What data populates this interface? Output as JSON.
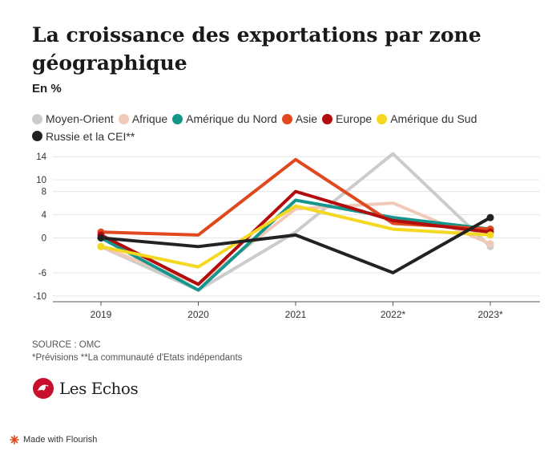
{
  "header": {
    "title": "La croissance des exportations par zone géographique",
    "subtitle": "En %"
  },
  "footer": {
    "source": "SOURCE : OMC",
    "note": "*Prévisions **La communauté d'Etats indépendants"
  },
  "brand": {
    "logo_text": "Les Echos",
    "made_with": "Made with Flourish"
  },
  "chart_data": {
    "type": "line",
    "title": "La croissance des exportations par zone géographique",
    "subtitle": "En %",
    "categories": [
      "2019",
      "2020",
      "2021",
      "2022*",
      "2023*"
    ],
    "y_ticks": [
      14,
      10,
      8,
      4,
      0,
      -6,
      -10
    ],
    "ylim": [
      -11,
      15
    ],
    "grid": true,
    "legend_position": "top",
    "series": [
      {
        "name": "Moyen-Orient",
        "color": "#cccccc",
        "values": [
          -1.5,
          -9,
          1,
          14.5,
          -1.5
        ]
      },
      {
        "name": "Afrique",
        "color": "#f0c9b9",
        "values": [
          -1.5,
          -8,
          5,
          6,
          -1
        ]
      },
      {
        "name": "Amérique du Nord",
        "color": "#14968c",
        "values": [
          0,
          -9,
          6.5,
          3.5,
          1.5
        ]
      },
      {
        "name": "Asie",
        "color": "#e0481d",
        "values": [
          1,
          0.5,
          13.5,
          2.5,
          1.5
        ]
      },
      {
        "name": "Europe",
        "color": "#b20c0c",
        "values": [
          0.5,
          -8,
          8,
          3,
          1
        ]
      },
      {
        "name": "Amérique du Sud",
        "color": "#f4d821",
        "values": [
          -1.5,
          -5,
          5.5,
          1.5,
          0.5
        ]
      },
      {
        "name": "Russie et la CEI**",
        "color": "#222222",
        "values": [
          0,
          -1.5,
          0.5,
          -6,
          3.5
        ]
      }
    ]
  }
}
